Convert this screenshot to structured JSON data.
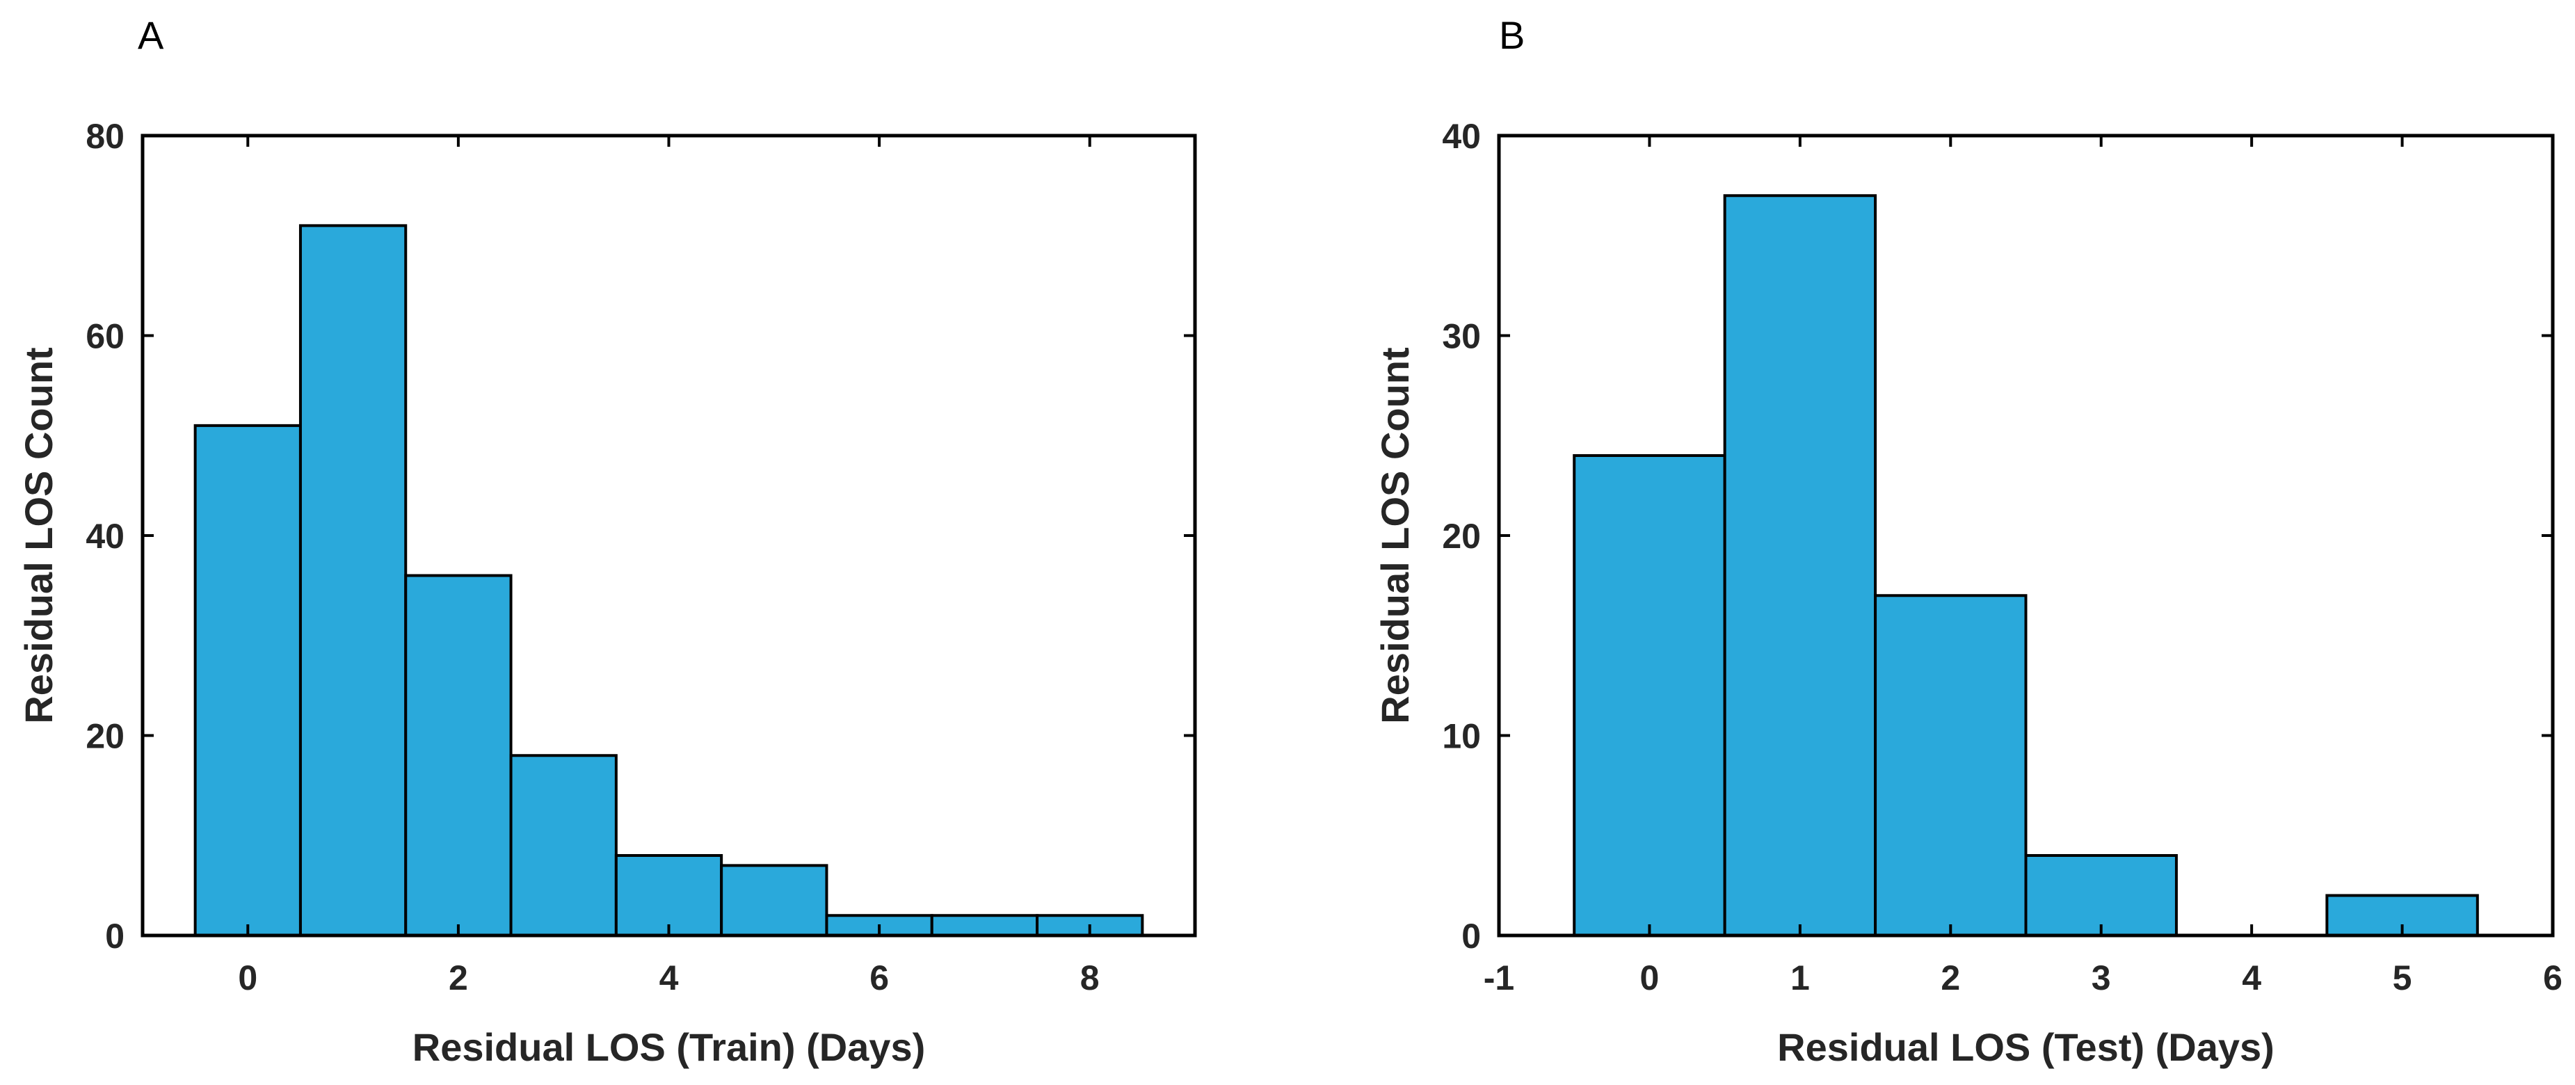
{
  "chart_data": [
    {
      "panel": "A",
      "type": "bar",
      "subtype": "histogram",
      "bin_width": 1,
      "bin_centers": [
        0,
        1,
        2,
        3,
        4,
        5,
        6,
        7,
        8
      ],
      "values": [
        51,
        71,
        36,
        18,
        8,
        7,
        2,
        2,
        2
      ],
      "xlabel": "Residual LOS (Train) (Days)",
      "ylabel": "Residual LOS Count",
      "xlim": [
        -1,
        9
      ],
      "ylim": [
        0,
        80
      ],
      "xticks": [
        0,
        2,
        4,
        6,
        8
      ],
      "yticks": [
        0,
        20,
        40,
        60,
        80
      ],
      "color": "#2aa9db",
      "grid": false
    },
    {
      "panel": "B",
      "type": "bar",
      "subtype": "histogram",
      "bin_width": 1,
      "bin_centers": [
        0,
        1,
        2,
        3,
        4,
        5
      ],
      "values": [
        24,
        37,
        17,
        4,
        0,
        2
      ],
      "xlabel": "Residual LOS (Test) (Days)",
      "ylabel": "Residual LOS Count",
      "xlim": [
        -1,
        6
      ],
      "ylim": [
        0,
        40
      ],
      "xticks": [
        -1,
        0,
        1,
        2,
        3,
        4,
        5,
        6
      ],
      "yticks": [
        0,
        10,
        20,
        30,
        40
      ],
      "color": "#2aa9db",
      "grid": false
    }
  ]
}
